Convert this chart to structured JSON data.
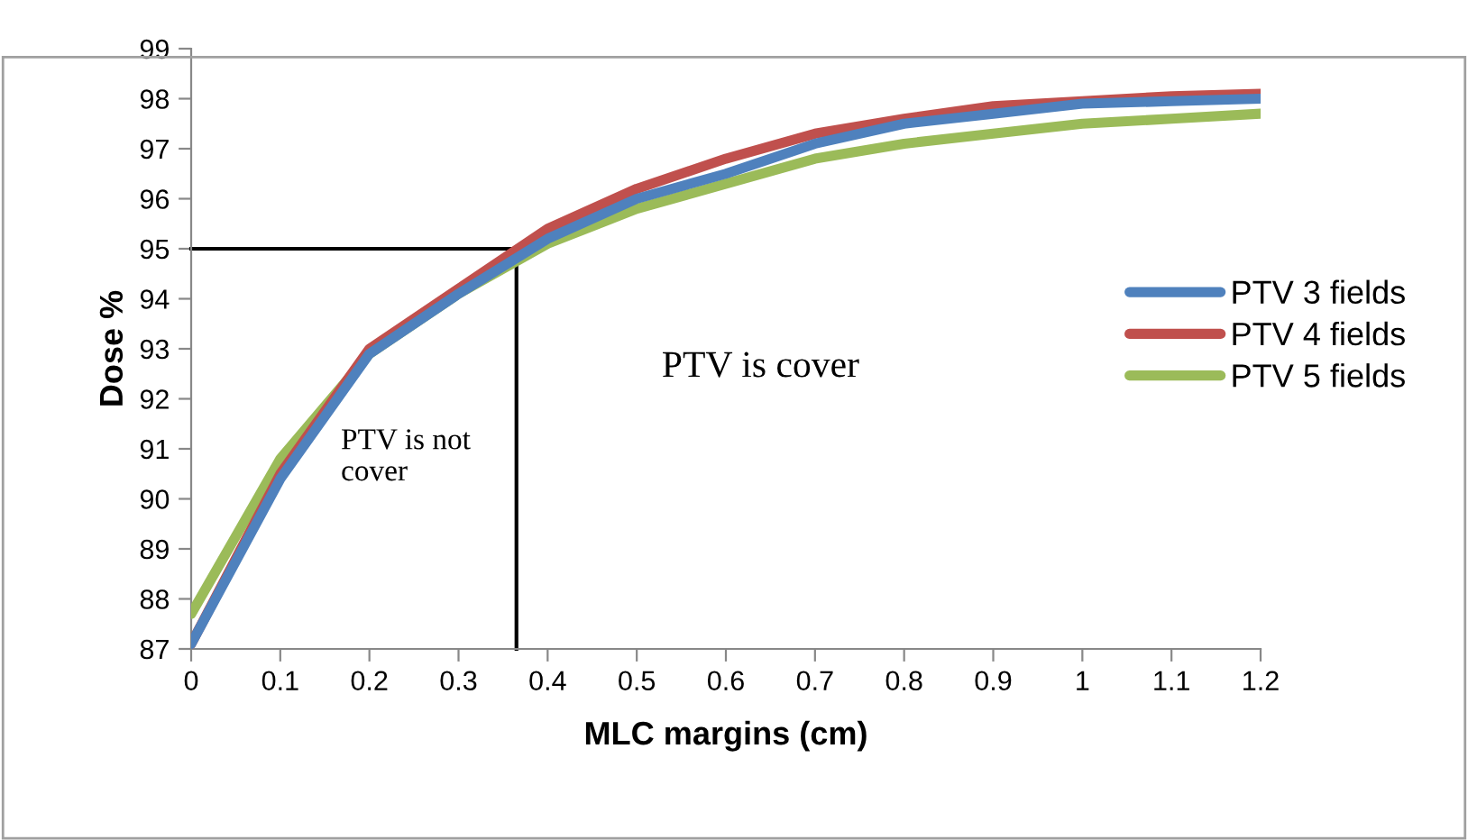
{
  "chart_data": {
    "type": "line",
    "xlabel": "MLC margins (cm)",
    "ylabel": "Dose %",
    "x": [
      0,
      0.1,
      0.2,
      0.3,
      0.4,
      0.5,
      0.6,
      0.7,
      0.8,
      0.9,
      1.0,
      1.1,
      1.2
    ],
    "series": [
      {
        "name": "PTV 3 fields",
        "color": "#4f81bd",
        "values": [
          87.1,
          90.4,
          92.9,
          94.1,
          95.2,
          96.0,
          96.5,
          97.1,
          97.5,
          97.7,
          97.9,
          97.95,
          98.0
        ]
      },
      {
        "name": "PTV 4 fields",
        "color": "#c0504d",
        "values": [
          87.1,
          90.5,
          93.0,
          94.2,
          95.4,
          96.2,
          96.8,
          97.3,
          97.6,
          97.85,
          97.95,
          98.05,
          98.1
        ]
      },
      {
        "name": "PTV 5 fields",
        "color": "#9bbb59",
        "values": [
          87.7,
          90.8,
          92.9,
          94.1,
          95.1,
          95.8,
          96.3,
          96.8,
          97.1,
          97.3,
          97.5,
          97.6,
          97.7
        ]
      }
    ],
    "xlim": [
      0,
      1.2
    ],
    "xticks": [
      0,
      0.1,
      0.2,
      0.3,
      0.4,
      0.5,
      0.6,
      0.7,
      0.8,
      0.9,
      1,
      1.1,
      1.2
    ],
    "ylim": [
      87,
      99
    ],
    "yticks": [
      87,
      88,
      89,
      90,
      91,
      92,
      93,
      94,
      95,
      96,
      97,
      98,
      99
    ],
    "ref_lines": [
      {
        "axis": "y",
        "value": 95,
        "color": "#000000"
      },
      {
        "axis": "x",
        "value": 0.365,
        "color": "#000000"
      }
    ],
    "annotations": [
      "PTV is not\ncover",
      "PTV is cover"
    ],
    "grid": false,
    "legend": "right",
    "marker": "none",
    "line_style": "solid"
  }
}
